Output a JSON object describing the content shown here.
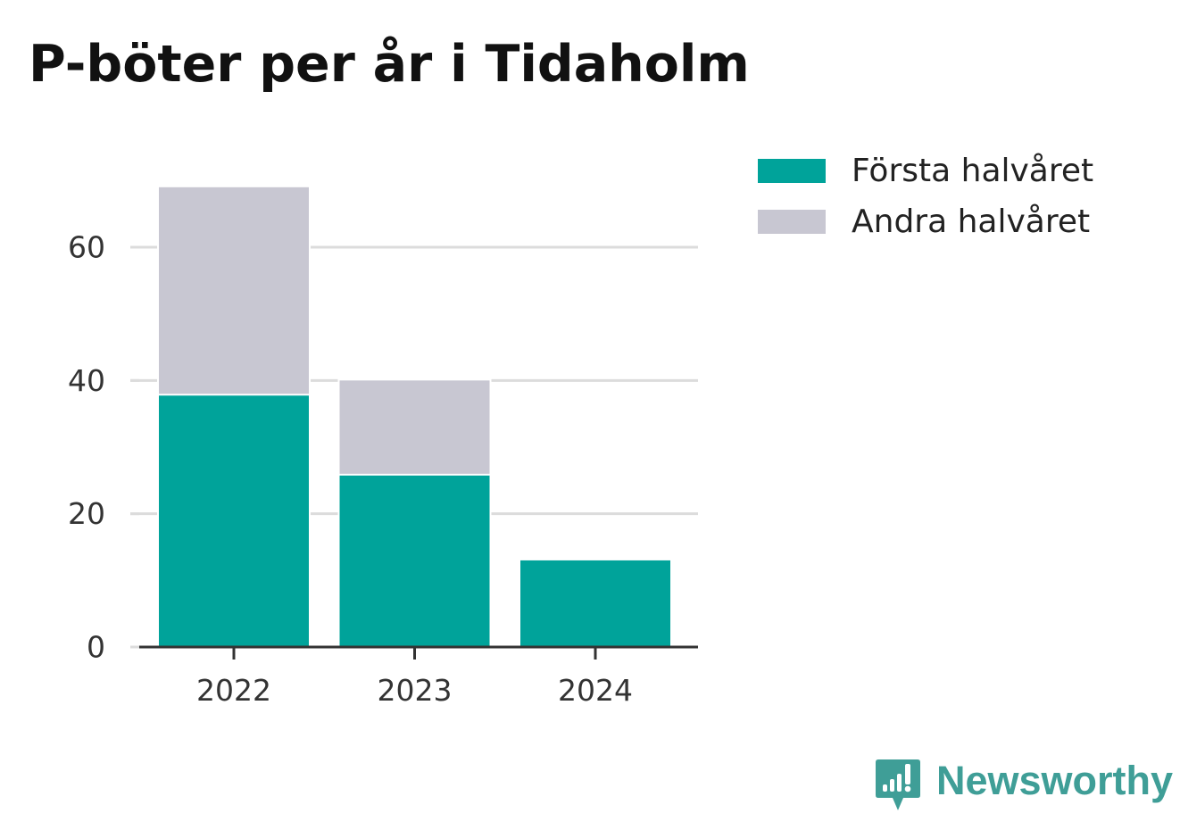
{
  "chart_data": {
    "type": "bar",
    "stacked": true,
    "title": "P-böter per år i Tidaholm",
    "categories": [
      "2022",
      "2023",
      "2024"
    ],
    "series": [
      {
        "name": "Första halvåret",
        "values": [
          38,
          26,
          13
        ],
        "color": "#00a39a"
      },
      {
        "name": "Andra halvåret",
        "values": [
          31,
          14,
          0
        ],
        "color": "#c8c7d2"
      }
    ],
    "ylim": [
      0,
      69
    ],
    "yticks": [
      0,
      20,
      40,
      60
    ],
    "xlabel": "",
    "ylabel": "",
    "grid": true,
    "legend_position": "right"
  },
  "legend": {
    "items": [
      {
        "label": "Första halvåret",
        "color": "#00a39a"
      },
      {
        "label": "Andra halvåret",
        "color": "#c8c7d2"
      }
    ]
  },
  "brand": {
    "name": "Newsworthy",
    "icon": "newsworthy-logo-icon",
    "color": "#3f9e97"
  }
}
